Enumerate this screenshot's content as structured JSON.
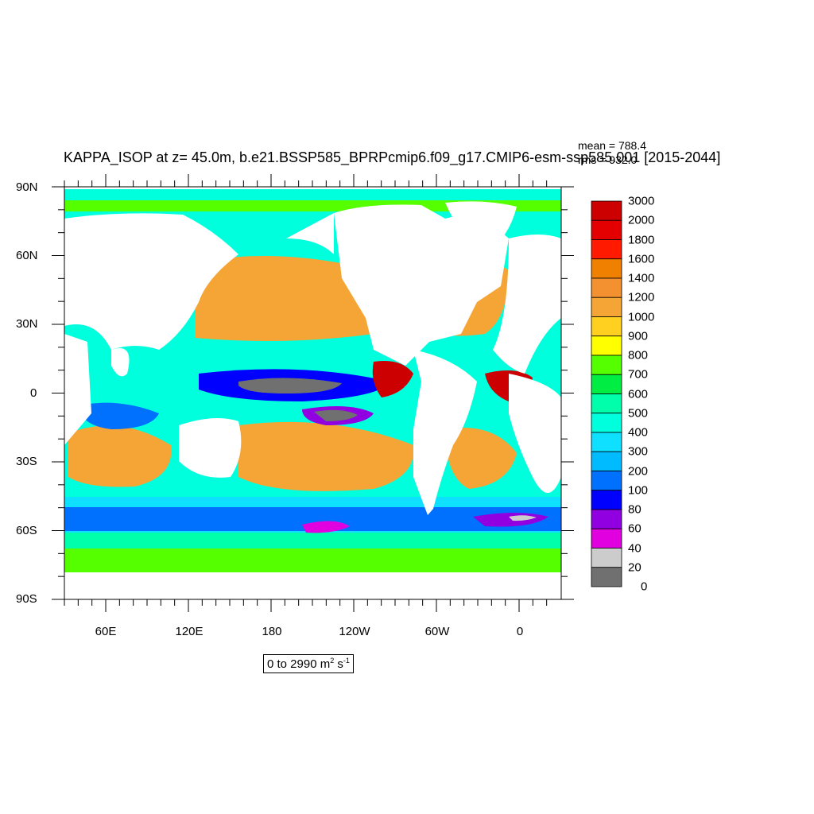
{
  "title": "KAPPA_ISOP at z=  45.0m, b.e21.BSSP585_BPRPcmip6.f09_g17.CMIP6-esm-ssp585.001 [2015-2044]",
  "stats": {
    "mean": "mean = 788.4",
    "rms": "rms = 932.0"
  },
  "axes": {
    "lat_labels": [
      "90N",
      "60N",
      "30N",
      "0",
      "30S",
      "60S",
      "90S"
    ],
    "lon_labels": [
      "60E",
      "120E",
      "180",
      "120W",
      "60W",
      "0"
    ]
  },
  "range_label": {
    "prefix": "0 to 2990 m",
    "sup1": "2",
    "mid": " s",
    "sup2": "-1"
  },
  "colorbar": {
    "labels": [
      "3000",
      "2000",
      "1800",
      "1600",
      "1400",
      "1200",
      "1000",
      "900",
      "800",
      "700",
      "600",
      "500",
      "400",
      "300",
      "200",
      "100",
      "80",
      "60",
      "40",
      "20",
      "0"
    ],
    "colors_top_to_bottom": [
      "#cc0000",
      "#e40000",
      "#ff1a00",
      "#f08000",
      "#f39030",
      "#f5a535",
      "#ffd020",
      "#ffff00",
      "#55ff00",
      "#00ee44",
      "#00ffaa",
      "#00ffdd",
      "#10e0ff",
      "#00bbff",
      "#0070ff",
      "#0000ff",
      "#9000e0",
      "#e000e0",
      "#cccccc",
      "#707070"
    ]
  }
}
